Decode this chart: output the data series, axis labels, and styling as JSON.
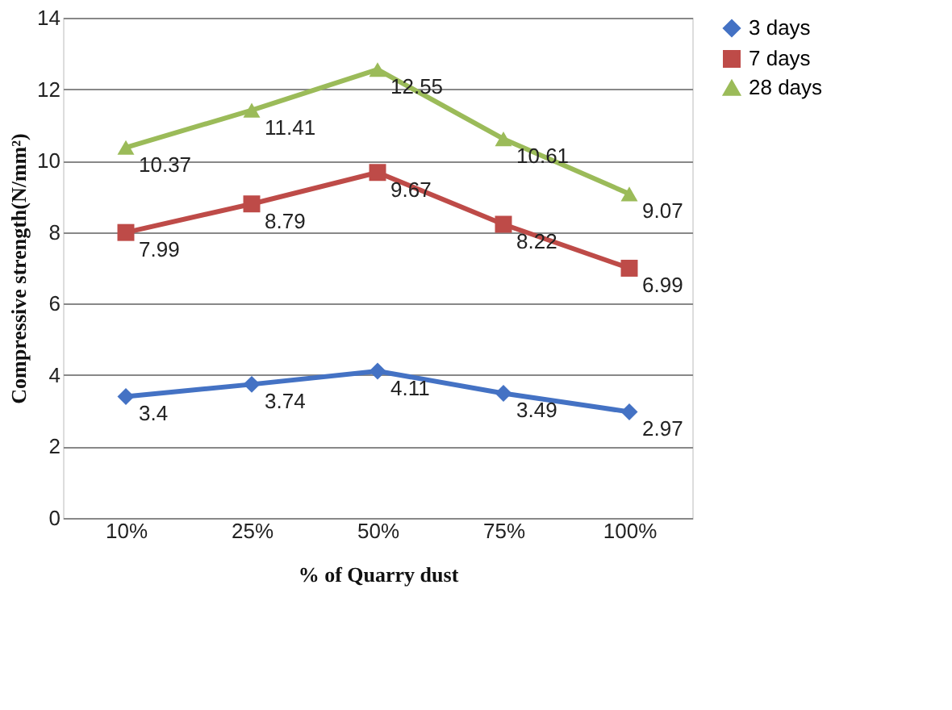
{
  "chart_data": {
    "type": "line",
    "xlabel": "% of Quarry dust",
    "ylabel": "Compressive strength(N/mm²)",
    "categories": [
      "10%",
      "25%",
      "50%",
      "75%",
      "100%"
    ],
    "series": [
      {
        "name": "3 days",
        "color": "#4472c4",
        "marker": "diamond",
        "values": [
          3.4,
          3.74,
          4.11,
          3.49,
          2.97
        ]
      },
      {
        "name": "7 days",
        "color": "#be4b48",
        "marker": "square",
        "values": [
          7.99,
          8.79,
          9.67,
          8.22,
          6.99
        ]
      },
      {
        "name": "28 days",
        "color": "#9bbb59",
        "marker": "triangle",
        "values": [
          10.37,
          11.41,
          12.55,
          10.61,
          9.07
        ]
      }
    ],
    "ylim": [
      0,
      14
    ],
    "yticks": [
      0,
      2,
      4,
      6,
      8,
      10,
      12,
      14
    ],
    "grid": "y",
    "legend": "right",
    "data_labels": true,
    "line_style": "solid"
  }
}
